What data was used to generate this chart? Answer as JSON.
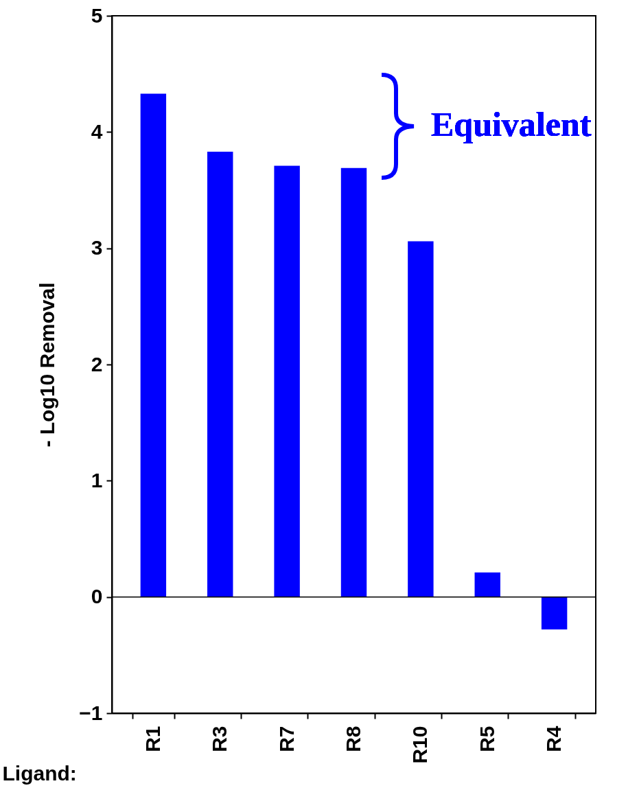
{
  "chart_data": {
    "type": "bar",
    "ylabel": "- Log10 Removal",
    "xlabel": "Ligand:",
    "categories": [
      "R1",
      "R3",
      "R7",
      "R8",
      "R10",
      "R5",
      "R4"
    ],
    "values": [
      4.33,
      3.83,
      3.71,
      3.69,
      3.06,
      0.21,
      -0.28
    ],
    "color": "#0000ff",
    "ylim": [
      -1,
      5
    ],
    "yticks": [
      -1,
      0,
      1,
      2,
      3,
      4,
      5
    ],
    "ref_lines": [
      {
        "axis": "y",
        "value": 0
      }
    ],
    "annotations": [
      "Equivalent"
    ]
  }
}
